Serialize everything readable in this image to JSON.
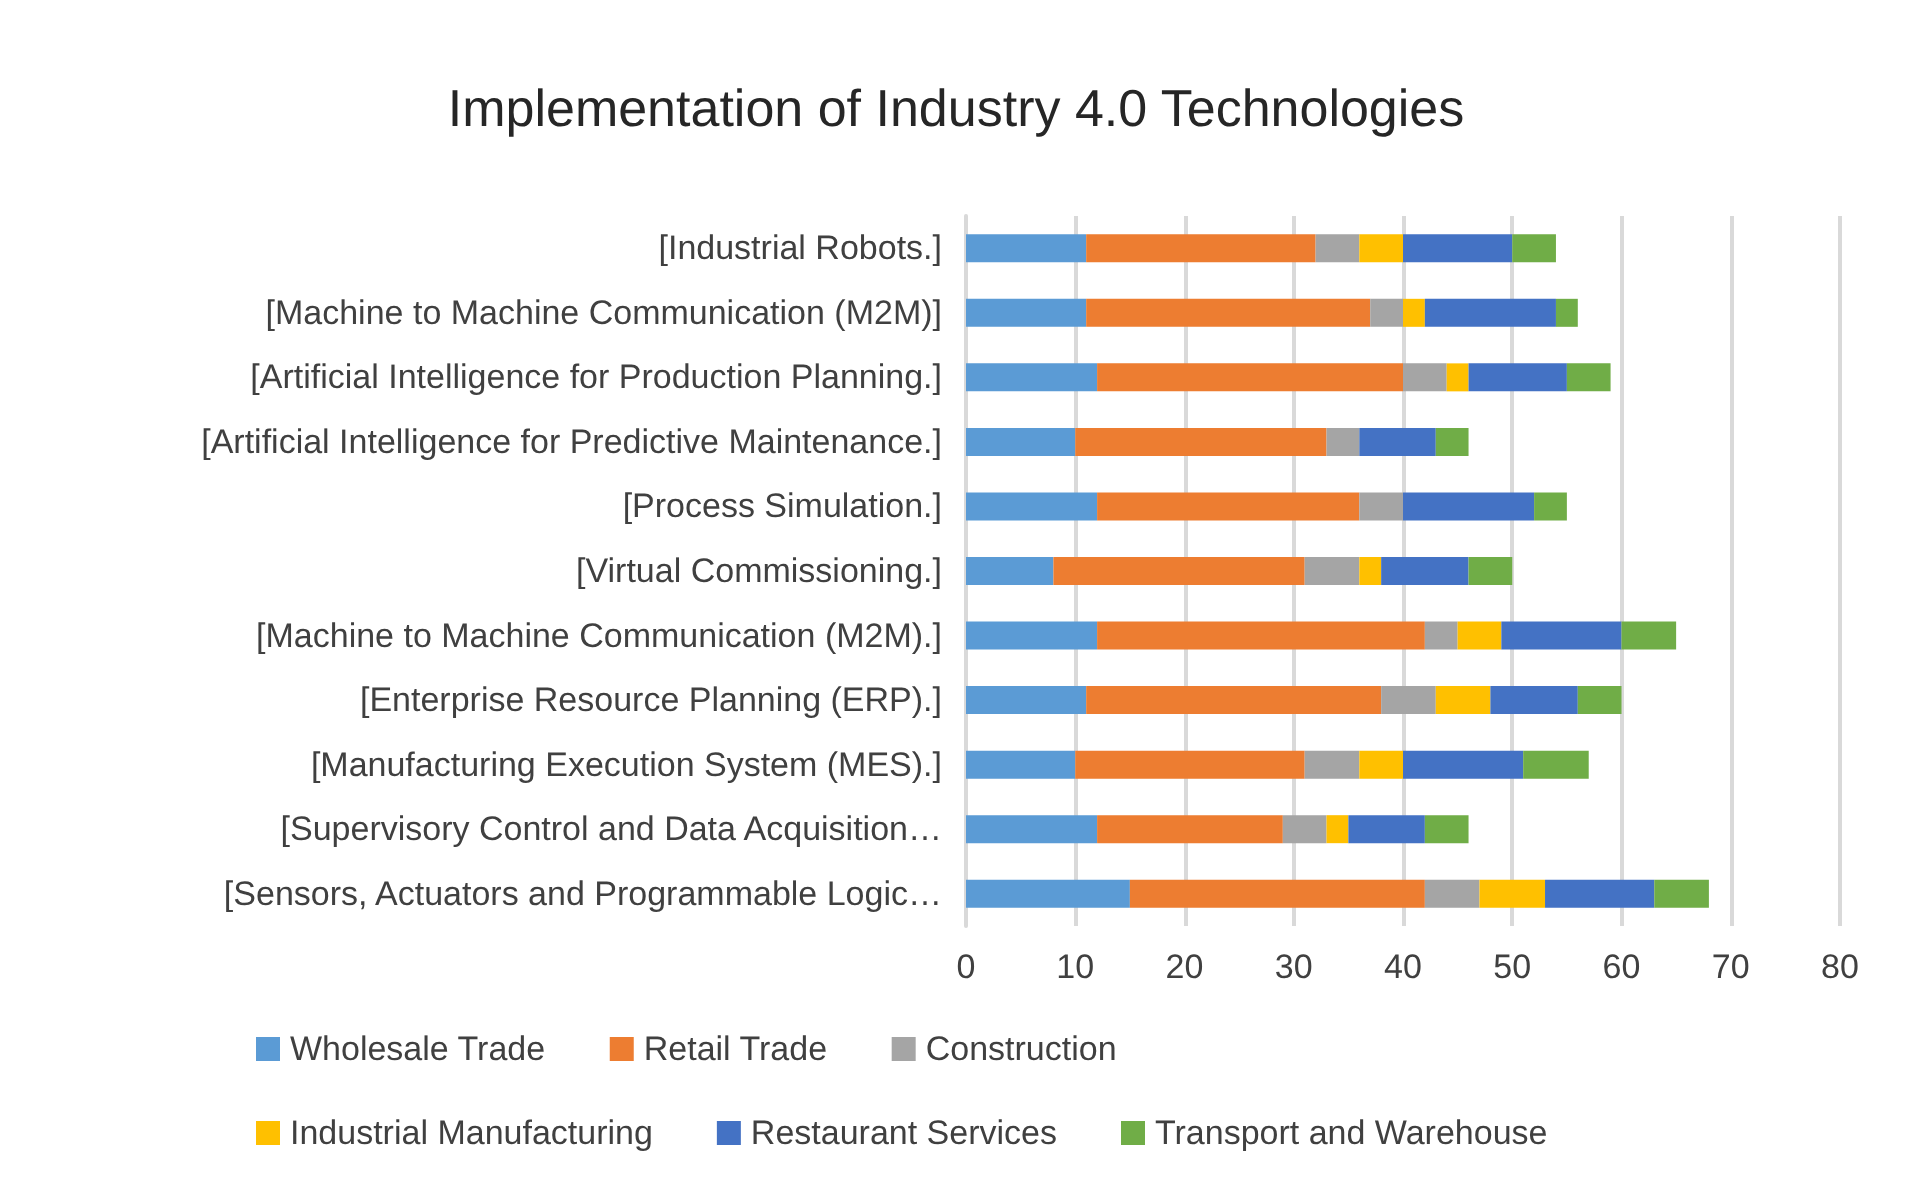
{
  "chart_data": {
    "type": "bar",
    "title": "Implementation of Industry 4.0 Technologies",
    "orientation": "horizontal",
    "stacked": true,
    "categories": [
      "[Industrial Robots.]",
      "[Machine to Machine Communication (M2M)]",
      "[Artificial Intelligence for Production Planning.]",
      "[Artificial Intelligence for Predictive Maintenance.]",
      "[Process Simulation.]",
      "[Virtual Commissioning.]",
      "[Machine to Machine Communication (M2M).]",
      "[Enterprise Resource Planning (ERP).]",
      "[Manufacturing Execution System (MES).]",
      "[Supervisory Control and Data Acquisition…",
      "[Sensors, Actuators and Programmable Logic…"
    ],
    "series": [
      {
        "name": "Wholesale Trade",
        "color": "#5b9bd5",
        "values": [
          11,
          11,
          12,
          10,
          12,
          8,
          12,
          11,
          10,
          12,
          15
        ]
      },
      {
        "name": "Retail Trade",
        "color": "#ed7d31",
        "values": [
          21,
          26,
          28,
          23,
          24,
          23,
          30,
          27,
          21,
          17,
          27
        ]
      },
      {
        "name": "Construction",
        "color": "#a5a5a5",
        "values": [
          4,
          3,
          4,
          3,
          4,
          5,
          3,
          5,
          5,
          4,
          5
        ]
      },
      {
        "name": "Industrial Manufacturing",
        "color": "#ffc000",
        "values": [
          4,
          2,
          2,
          0,
          0,
          2,
          4,
          5,
          4,
          2,
          6
        ]
      },
      {
        "name": "Restaurant Services",
        "color": "#4472c4",
        "values": [
          10,
          12,
          9,
          7,
          12,
          8,
          11,
          8,
          11,
          7,
          10
        ]
      },
      {
        "name": "Transport and Warehouse",
        "color": "#70ad47",
        "values": [
          4,
          2,
          4,
          3,
          3,
          4,
          5,
          4,
          6,
          4,
          5
        ]
      }
    ],
    "xlim": [
      0,
      80
    ],
    "xticks": [
      0,
      10,
      20,
      30,
      40,
      50,
      60,
      70,
      80
    ],
    "grid": "x",
    "legend": "bottom"
  }
}
